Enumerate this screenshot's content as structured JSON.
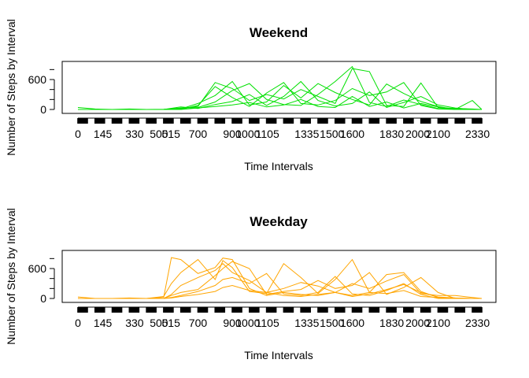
{
  "chart_data": [
    {
      "type": "line",
      "title": "Weekend",
      "xlabel": "Time Intervals",
      "ylabel": "Number of Steps by Interval",
      "series_color": "#00E000",
      "ylim": [
        0,
        900
      ],
      "y_ticks": [
        0,
        600
      ],
      "x_tick_labels": [
        "0",
        "145",
        "330",
        "500",
        "515",
        "700",
        "900",
        "1000",
        "1105",
        "1335",
        "1500",
        "1600",
        "1830",
        "2000",
        "2100",
        "2330"
      ],
      "x_tick_values": [
        0,
        145,
        330,
        500,
        515,
        700,
        900,
        1000,
        1105,
        1335,
        1500,
        1600,
        1830,
        2000,
        2100,
        2330
      ],
      "x": [
        0,
        100,
        200,
        300,
        400,
        500,
        600,
        700,
        800,
        900,
        1000,
        1100,
        1200,
        1300,
        1400,
        1500,
        1600,
        1700,
        1800,
        1900,
        2000,
        2100,
        2200,
        2300,
        2355
      ],
      "series": [
        {
          "values": [
            0,
            0,
            0,
            0,
            0,
            5,
            20,
            60,
            540,
            420,
            180,
            300,
            210,
            400,
            260,
            120,
            820,
            760,
            80,
            60,
            530,
            40,
            20,
            10,
            0
          ]
        },
        {
          "values": [
            40,
            10,
            0,
            0,
            0,
            0,
            10,
            120,
            280,
            560,
            90,
            150,
            480,
            230,
            520,
            340,
            200,
            90,
            510,
            320,
            160,
            60,
            0,
            180,
            0
          ]
        },
        {
          "values": [
            0,
            0,
            0,
            10,
            0,
            0,
            30,
            40,
            150,
            380,
            520,
            200,
            100,
            80,
            300,
            560,
            860,
            140,
            60,
            190,
            100,
            20,
            10,
            0,
            0
          ]
        },
        {
          "values": [
            0,
            0,
            0,
            0,
            0,
            0,
            0,
            80,
            460,
            240,
            60,
            330,
            540,
            120,
            90,
            180,
            420,
            280,
            350,
            540,
            80,
            10,
            0,
            0,
            0
          ]
        },
        {
          "values": [
            0,
            0,
            0,
            0,
            0,
            0,
            50,
            20,
            100,
            160,
            300,
            80,
            260,
            560,
            180,
            70,
            120,
            350,
            40,
            140,
            260,
            90,
            30,
            0,
            0
          ]
        },
        {
          "values": [
            0,
            0,
            0,
            0,
            0,
            0,
            0,
            30,
            60,
            90,
            140,
            50,
            90,
            200,
            60,
            40,
            260,
            60,
            150,
            30,
            120,
            50,
            0,
            0,
            0
          ]
        }
      ]
    },
    {
      "type": "line",
      "title": "Weekday",
      "xlabel": "Time Intervals",
      "ylabel": "Number of Steps by Interval",
      "series_color": "#FFA500",
      "ylim": [
        0,
        900
      ],
      "y_ticks": [
        0,
        600
      ],
      "x_tick_labels": [
        "0",
        "145",
        "330",
        "500",
        "515",
        "700",
        "900",
        "1000",
        "1105",
        "1335",
        "1500",
        "1600",
        "1830",
        "2000",
        "2100",
        "2330"
      ],
      "x_tick_values": [
        0,
        145,
        330,
        500,
        515,
        700,
        900,
        1000,
        1105,
        1335,
        1500,
        1600,
        1830,
        2000,
        2100,
        2330
      ],
      "x": [
        0,
        100,
        200,
        300,
        400,
        500,
        545,
        600,
        700,
        800,
        845,
        900,
        1000,
        1100,
        1200,
        1300,
        1400,
        1500,
        1600,
        1700,
        1800,
        1900,
        2000,
        2100,
        2200,
        2300,
        2355
      ],
      "series": [
        {
          "values": [
            0,
            0,
            0,
            0,
            0,
            20,
            820,
            780,
            500,
            620,
            810,
            780,
            200,
            60,
            120,
            80,
            60,
            120,
            40,
            90,
            180,
            280,
            120,
            30,
            10,
            0,
            0
          ]
        },
        {
          "values": [
            30,
            0,
            0,
            0,
            0,
            40,
            300,
            520,
            780,
            380,
            760,
            620,
            140,
            100,
            700,
            420,
            100,
            380,
            780,
            120,
            480,
            520,
            140,
            20,
            10,
            0,
            0
          ]
        },
        {
          "values": [
            0,
            0,
            0,
            0,
            0,
            0,
            80,
            260,
            420,
            560,
            700,
            520,
            360,
            120,
            200,
            320,
            250,
            120,
            300,
            200,
            350,
            480,
            100,
            60,
            60,
            20,
            0
          ]
        },
        {
          "values": [
            0,
            0,
            0,
            10,
            0,
            0,
            60,
            120,
            180,
            460,
            600,
            740,
            600,
            80,
            140,
            180,
            360,
            200,
            260,
            520,
            80,
            220,
            420,
            120,
            0,
            0,
            0
          ]
        },
        {
          "values": [
            0,
            0,
            0,
            0,
            0,
            0,
            20,
            60,
            140,
            260,
            380,
            420,
            300,
            500,
            90,
            60,
            120,
            440,
            90,
            60,
            160,
            300,
            80,
            0,
            0,
            0,
            0
          ]
        },
        {
          "values": [
            0,
            0,
            0,
            0,
            0,
            0,
            10,
            40,
            80,
            140,
            220,
            260,
            160,
            120,
            60,
            40,
            80,
            120,
            60,
            120,
            100,
            160,
            40,
            20,
            0,
            0,
            0
          ]
        }
      ]
    }
  ]
}
